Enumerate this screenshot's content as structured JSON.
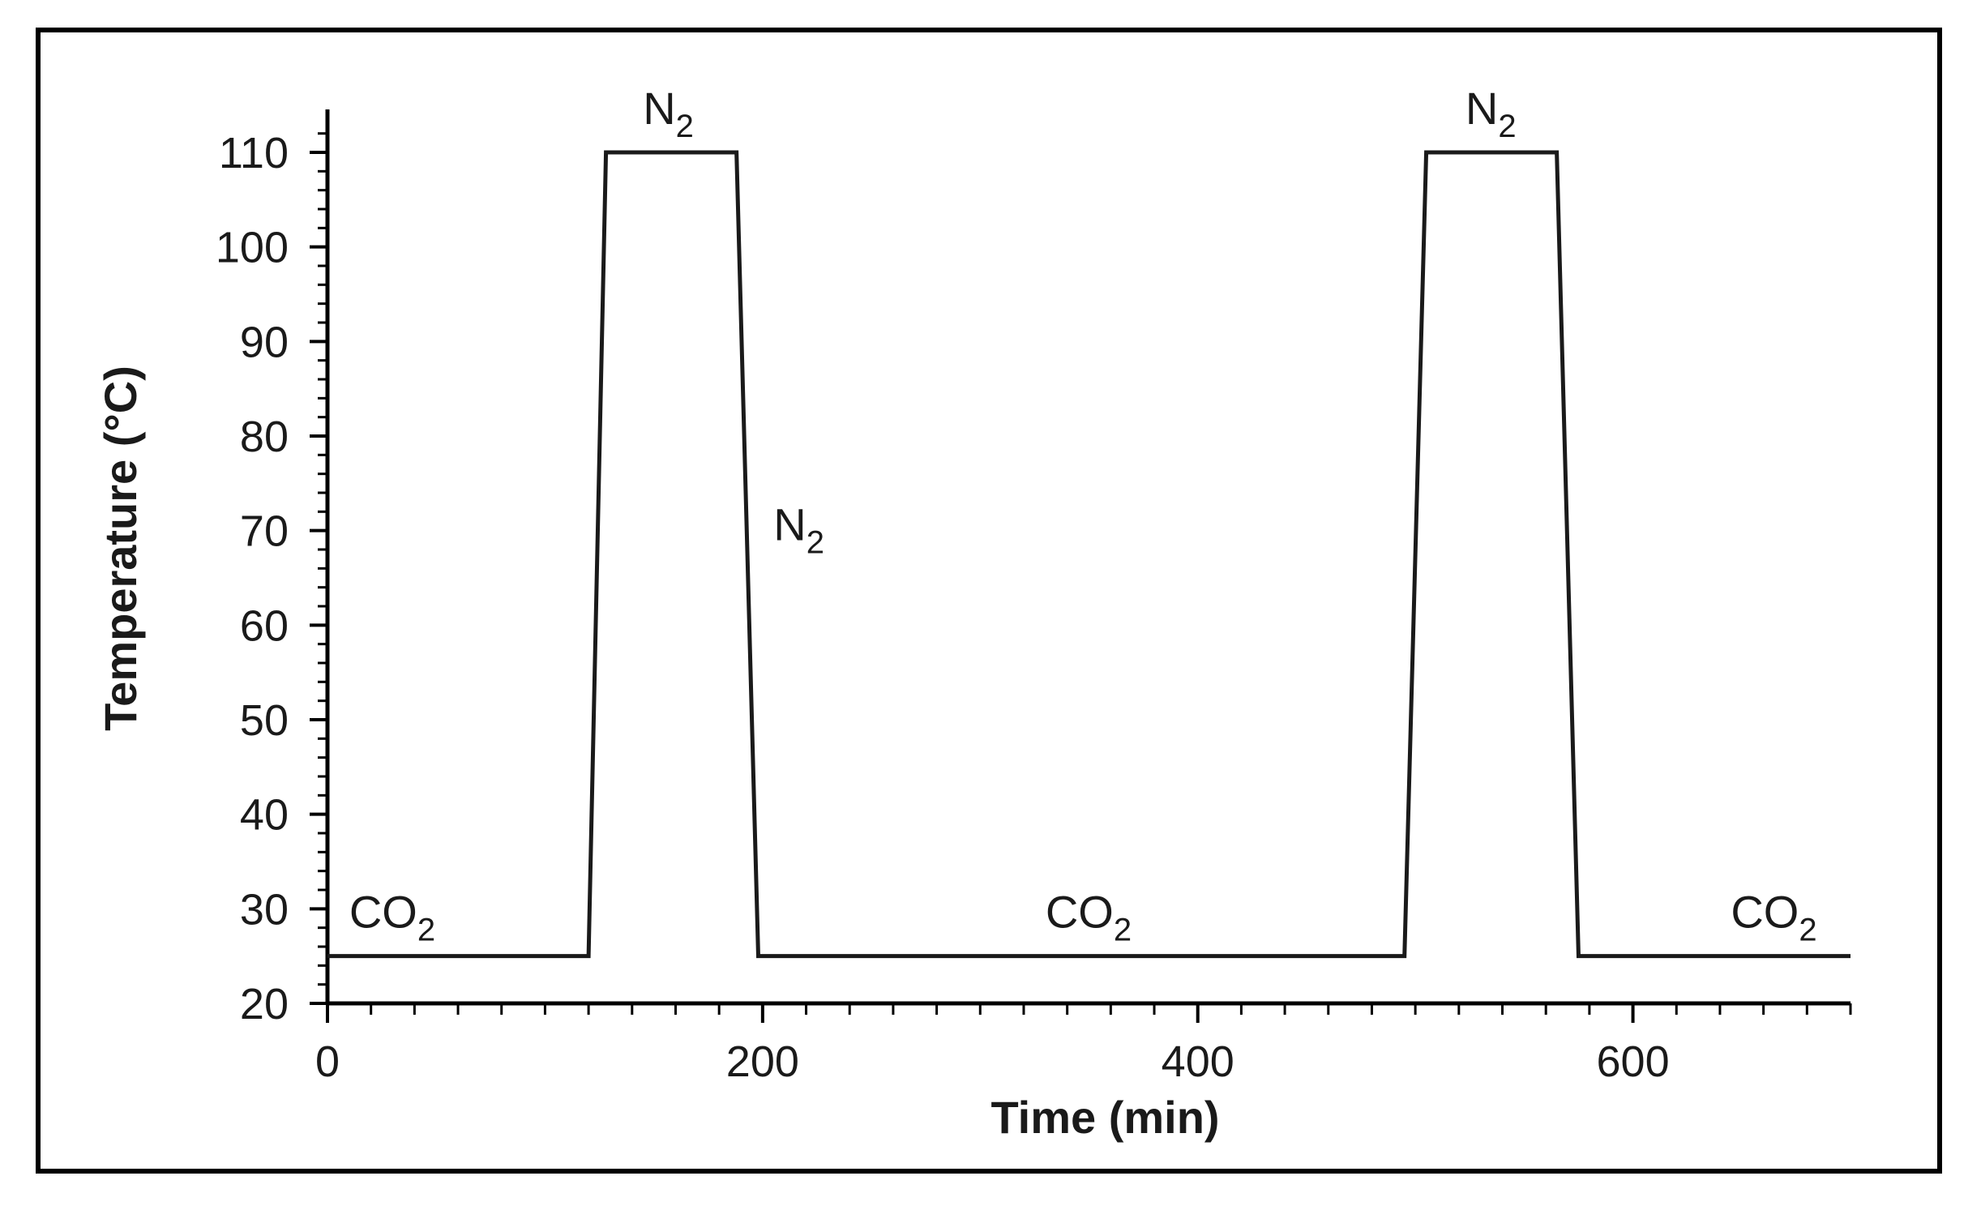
{
  "chart_data": {
    "type": "line",
    "title": "",
    "xlabel": "Time (min)",
    "ylabel": "Temperature (°C)",
    "xlim": [
      0,
      700
    ],
    "ylim": [
      20,
      110
    ],
    "x_ticks": [
      0,
      200,
      400,
      600
    ],
    "x_tick_labels": [
      "0",
      "200",
      "400",
      "600"
    ],
    "y_ticks": [
      20,
      30,
      40,
      50,
      60,
      70,
      80,
      90,
      100,
      110
    ],
    "y_tick_labels": [
      "20",
      "30",
      "40",
      "50",
      "60",
      "70",
      "80",
      "90",
      "100",
      "110"
    ],
    "grid": false,
    "legend": "none",
    "series": [
      {
        "x": [
          0,
          120,
          128,
          188,
          198,
          495,
          505,
          565,
          575,
          700
        ],
        "y": [
          25,
          25,
          110,
          110,
          25,
          25,
          110,
          110,
          25,
          25
        ]
      }
    ],
    "annotations": [
      {
        "base": "CO",
        "sub": "2",
        "x": 10,
        "y": 28
      },
      {
        "base": "N",
        "sub": "2",
        "x": 145,
        "y": 113
      },
      {
        "base": "N",
        "sub": "2",
        "x": 205,
        "y": 69
      },
      {
        "base": "CO",
        "sub": "2",
        "x": 330,
        "y": 28
      },
      {
        "base": "CO",
        "sub": "2",
        "x": 645,
        "y": 28
      },
      {
        "base": "N",
        "sub": "2",
        "x": 523,
        "y": 113
      }
    ],
    "colors": {
      "line": "#1a1a1a",
      "axis": "#000000"
    }
  }
}
